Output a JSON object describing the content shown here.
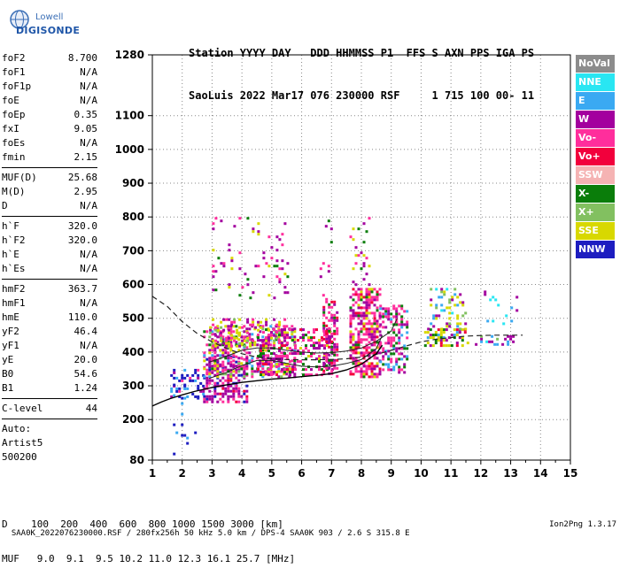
{
  "logo": {
    "line1": "Lowell",
    "line2": "DIGISONDE"
  },
  "header": {
    "line1": "Station YYYY DAY   DDD HHMMSS P1  FFS S AXN PPS IGA PS",
    "line2": "SaoLuis 2022 Mar17 076 230000 RSF     1 715 100 00- 11"
  },
  "params": {
    "group1": [
      {
        "name": "foF2",
        "value": "8.700"
      },
      {
        "name": "foF1",
        "value": "N/A"
      },
      {
        "name": "foF1p",
        "value": "N/A"
      },
      {
        "name": "foE",
        "value": "N/A"
      },
      {
        "name": "foEp",
        "value": "0.35"
      },
      {
        "name": "fxI",
        "value": "9.05"
      },
      {
        "name": "foEs",
        "value": "N/A"
      },
      {
        "name": "fmin",
        "value": "2.15"
      }
    ],
    "group2": [
      {
        "name": "MUF(D)",
        "value": "25.68"
      },
      {
        "name": "M(D)",
        "value": "2.95"
      },
      {
        "name": "D",
        "value": "N/A"
      }
    ],
    "group3": [
      {
        "name": "h`F",
        "value": "320.0"
      },
      {
        "name": "h`F2",
        "value": "320.0"
      },
      {
        "name": "h`E",
        "value": "N/A"
      },
      {
        "name": "h`Es",
        "value": "N/A"
      }
    ],
    "group4": [
      {
        "name": "hmF2",
        "value": "363.7"
      },
      {
        "name": "hmF1",
        "value": "N/A"
      },
      {
        "name": "hmE",
        "value": "110.0"
      },
      {
        "name": "yF2",
        "value": "46.4"
      },
      {
        "name": "yF1",
        "value": "N/A"
      },
      {
        "name": "yE",
        "value": "20.0"
      },
      {
        "name": "B0",
        "value": "54.6"
      },
      {
        "name": "B1",
        "value": "1.24"
      }
    ],
    "group5": [
      {
        "name": "C-level",
        "value": "44"
      }
    ],
    "auto": [
      "Auto:",
      "Artist5",
      "500200"
    ]
  },
  "legend": [
    {
      "label": "NoVal",
      "color": "#8c8c8c"
    },
    {
      "label": "NNE",
      "color": "#29e6f2"
    },
    {
      "label": "E",
      "color": "#3aa9f2"
    },
    {
      "label": "W",
      "color": "#a3009e"
    },
    {
      "label": "Vo-",
      "color": "#ff2e9c"
    },
    {
      "label": "Vo+",
      "color": "#f2003c"
    },
    {
      "label": "SSW",
      "color": "#f5b3b3"
    },
    {
      "label": "X-",
      "color": "#0a7d0a"
    },
    {
      "label": "X+",
      "color": "#82c060"
    },
    {
      "label": "SSE",
      "color": "#d8d800"
    },
    {
      "label": "NNW",
      "color": "#1d1dc0"
    }
  ],
  "footer": {
    "d_line": "D    100  200  400  600  800 1000 1500 3000 [km]",
    "muf_line": "MUF   9.0  9.1  9.5 10.2 11.0 12.3 16.1 25.7 [MHz]",
    "info_left": "SAA0K_2022076230000.RSF / 280fx256h 50 kHz 5.0 km / DPS-4 SAA0K 903 / 2.6 S 315.8 E",
    "info_right": "Ion2Png 1.3.17"
  },
  "chart_data": {
    "type": "scatter",
    "xlim": [
      1,
      15
    ],
    "ylim": [
      80,
      1280
    ],
    "x_ticks": [
      1,
      2,
      3,
      4,
      5,
      6,
      7,
      8,
      9,
      10,
      11,
      12,
      13,
      14,
      15
    ],
    "y_ticks": [
      80,
      200,
      300,
      400,
      500,
      600,
      700,
      800,
      900,
      1000,
      1100,
      1280
    ],
    "grid": true,
    "trace_clusters": [
      {
        "x": [
          1.6,
          2.7
        ],
        "y": [
          270,
          350
        ],
        "weights": {
          "NNW": 6,
          "W": 2,
          "Vo-": 1,
          "E": 1
        },
        "density": 0.35
      },
      {
        "x": [
          2.7,
          4.2
        ],
        "y": [
          255,
          390
        ],
        "weights": {
          "W": 5,
          "Vo-": 4,
          "NNW": 2,
          "Vo+": 1
        },
        "density": 0.5
      },
      {
        "x": [
          2.7,
          5.8
        ],
        "y": [
          330,
          480
        ],
        "weights": {
          "Vo-": 4,
          "W": 3,
          "SSE": 2,
          "X-": 1,
          "X+": 1,
          "E": 1
        },
        "density": 0.45
      },
      {
        "x": [
          2.9,
          5.5
        ],
        "y": [
          420,
          500
        ],
        "weights": {
          "SSE": 3,
          "Vo-": 2,
          "W": 2,
          "X+": 1
        },
        "density": 0.3
      },
      {
        "x": [
          4.5,
          7.0
        ],
        "y": [
          330,
          470
        ],
        "weights": {
          "Vo-": 4,
          "W": 3,
          "X-": 2,
          "Vo+": 1,
          "SSE": 1
        },
        "density": 0.4
      },
      {
        "x": [
          6.7,
          7.2
        ],
        "y": [
          330,
          560
        ],
        "weights": {
          "Vo-": 4,
          "W": 3,
          "Vo+": 2,
          "X-": 1
        },
        "density": 0.5
      },
      {
        "x": [
          7.6,
          8.6
        ],
        "y": [
          330,
          590
        ],
        "weights": {
          "Vo-": 5,
          "W": 3,
          "Vo+": 2,
          "X-": 1,
          "SSE": 1
        },
        "density": 0.6
      },
      {
        "x": [
          8.6,
          9.5
        ],
        "y": [
          340,
          540
        ],
        "weights": {
          "Vo-": 4,
          "W": 3,
          "X-": 2,
          "E": 1
        },
        "density": 0.4
      },
      {
        "x": [
          10.1,
          11.6
        ],
        "y": [
          415,
          470
        ],
        "weights": {
          "SSE": 4,
          "X-": 2,
          "W": 2,
          "Vo+": 1,
          "E": 1
        },
        "density": 0.45
      },
      {
        "x": [
          10.2,
          11.5
        ],
        "y": [
          470,
          590
        ],
        "weights": {
          "X+": 2,
          "SSE": 2,
          "W": 2,
          "E": 2,
          "NNE": 1
        },
        "density": 0.2
      },
      {
        "x": [
          11.8,
          13.3
        ],
        "y": [
          420,
          450
        ],
        "weights": {
          "W": 4,
          "E": 2,
          "X+": 1,
          "NNE": 1
        },
        "density": 0.3
      },
      {
        "x": [
          12.1,
          13.3
        ],
        "y": [
          480,
          590
        ],
        "weights": {
          "NNE": 3,
          "E": 2,
          "W": 1
        },
        "density": 0.1
      },
      {
        "x": [
          3.0,
          5.5
        ],
        "y": [
          560,
          800
        ],
        "weights": {
          "W": 5,
          "Vo-": 2,
          "SSE": 1,
          "X-": 1
        },
        "density": 0.07
      },
      {
        "x": [
          6.6,
          7.0
        ],
        "y": [
          560,
          800
        ],
        "weights": {
          "W": 4,
          "Vo-": 2,
          "X-": 1
        },
        "density": 0.1
      },
      {
        "x": [
          7.6,
          8.3
        ],
        "y": [
          600,
          800
        ],
        "weights": {
          "W": 3,
          "SSE": 2,
          "Vo-": 2,
          "X-": 1
        },
        "density": 0.1
      },
      {
        "x": [
          1.6,
          2.5
        ],
        "y": [
          85,
          330
        ],
        "weights": {
          "NNW": 4,
          "E": 2
        },
        "density": 0.04
      }
    ],
    "profile_curve": {
      "x": [
        1.0,
        1.3,
        1.6,
        2.0,
        2.4,
        3.0,
        3.5,
        4.0,
        4.5,
        5.0,
        5.5,
        6.0,
        6.5,
        7.0,
        7.5,
        8.0,
        8.5,
        8.7
      ],
      "y": [
        240,
        252,
        262,
        273,
        283,
        295,
        303,
        310,
        315,
        320,
        323,
        327,
        331,
        336,
        347,
        364,
        395,
        420
      ]
    },
    "dashed_curve": {
      "x": [
        1.0,
        1.5,
        2.0,
        2.5,
        3.0,
        3.5,
        4.0,
        4.5,
        5.0,
        5.5,
        6.0,
        6.5,
        7.0,
        7.5,
        8.0,
        8.5,
        9.0,
        9.5,
        10.0,
        10.5,
        11.0,
        11.5,
        12.0,
        12.5,
        13.0,
        13.4
      ],
      "y": [
        565,
        535,
        490,
        455,
        430,
        410,
        395,
        385,
        380,
        378,
        377,
        377,
        378,
        380,
        385,
        393,
        405,
        418,
        430,
        438,
        443,
        447,
        449,
        450,
        450,
        450
      ]
    },
    "o_trace_curve": {
      "x": [
        2.9,
        3.5,
        4.0,
        4.5,
        5.0,
        5.5,
        6.0,
        6.5,
        7.0,
        7.5,
        8.0,
        8.5,
        8.7
      ],
      "y": [
        322,
        340,
        360,
        375,
        375,
        366,
        358,
        356,
        358,
        366,
        378,
        410,
        450
      ]
    },
    "x_trace_curve": {
      "x": [
        2.9,
        3.4,
        4.0,
        4.5,
        5.0,
        5.5,
        6.0,
        6.5,
        7.0,
        7.5,
        8.0,
        8.5,
        9.0,
        9.2
      ],
      "y": [
        370,
        385,
        405,
        412,
        412,
        405,
        400,
        397,
        398,
        403,
        412,
        432,
        462,
        500
      ]
    }
  }
}
